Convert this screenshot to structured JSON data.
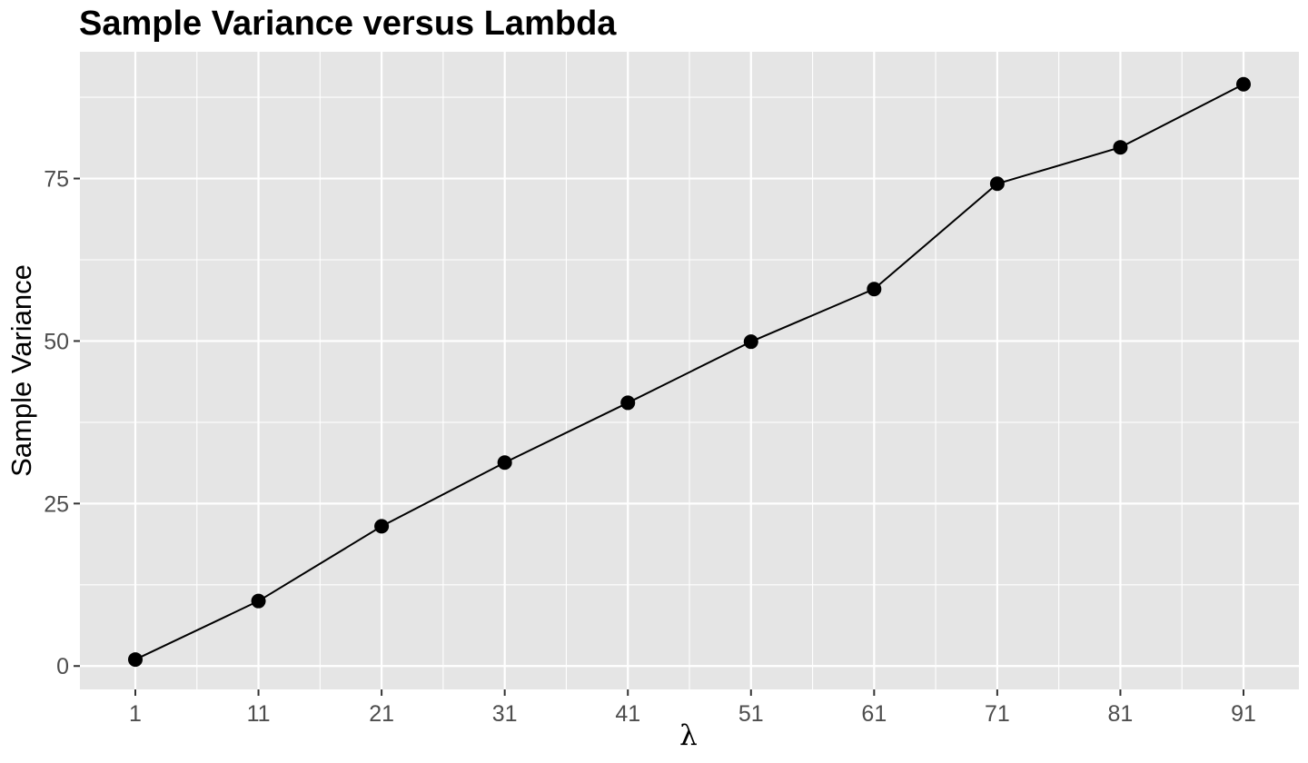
{
  "chart_data": {
    "type": "line",
    "title": "Sample Variance versus Lambda",
    "xlabel": "λ",
    "ylabel": "Sample Variance",
    "x": [
      1,
      11,
      21,
      31,
      41,
      51,
      61,
      71,
      81,
      91
    ],
    "x_tick_labels": [
      "1",
      "11",
      "21",
      "31",
      "41",
      "51",
      "61",
      "71",
      "81",
      "91"
    ],
    "y_ticks": [
      0,
      25,
      50,
      75
    ],
    "y_tick_labels": [
      "0",
      "25",
      "50",
      "75"
    ],
    "series": [
      {
        "values": [
          1.0,
          10.0,
          21.5,
          31.3,
          40.5,
          49.9,
          58.0,
          74.2,
          79.8,
          89.5
        ]
      }
    ],
    "xlim": [
      -3.5,
      95.5
    ],
    "ylim": [
      -3.6,
      94.5
    ],
    "grid": true,
    "markers": true,
    "colors": {
      "panel": "#e5e5e5",
      "grid": "#ffffff",
      "line": "#000000",
      "point": "#000000"
    }
  }
}
